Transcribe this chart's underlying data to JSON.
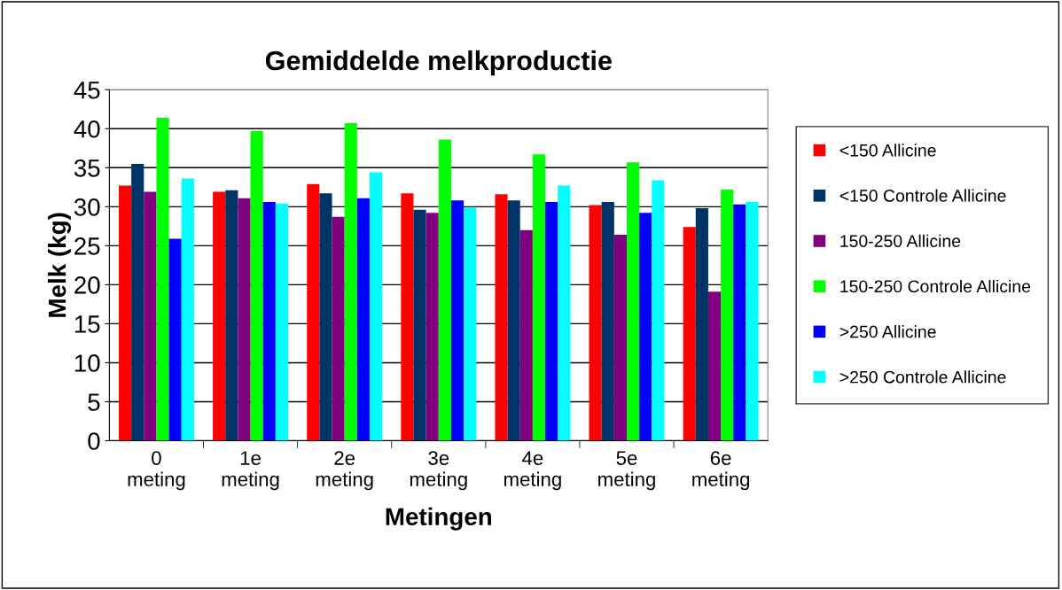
{
  "chart_data": {
    "type": "bar",
    "title": "Gemiddelde melkproductie",
    "xlabel": "Metingen",
    "ylabel": "Melk (kg)",
    "categories": [
      "0\nmeting",
      "1e\nmeting",
      "2e\nmeting",
      "3e\nmeting",
      "4e\nmeting",
      "5e\nmeting",
      "6e\nmeting"
    ],
    "series": [
      {
        "name": "<150 Allicine",
        "color": "#ff0000",
        "values": [
          32.7,
          31.9,
          32.9,
          31.7,
          31.6,
          30.2,
          27.4
        ]
      },
      {
        "name": "<150 Controle Allicine",
        "color": "#003366",
        "values": [
          35.5,
          32.1,
          31.7,
          29.6,
          30.8,
          30.6,
          29.8
        ]
      },
      {
        "name": "150-250 Allicine",
        "color": "#800080",
        "values": [
          31.9,
          31.1,
          28.7,
          29.2,
          27.0,
          26.4,
          19.1
        ]
      },
      {
        "name": "150-250 Controle Allicine",
        "color": "#00ff00",
        "values": [
          41.4,
          39.7,
          40.7,
          38.6,
          36.7,
          35.7,
          32.2
        ]
      },
      {
        "name": ">250 Allicine",
        "color": "#0000ff",
        "values": [
          25.9,
          30.6,
          31.1,
          30.8,
          30.6,
          29.2,
          30.3
        ]
      },
      {
        "name": ">250 Controle Allicine",
        "color": "#00ffff",
        "values": [
          33.6,
          30.4,
          34.4,
          29.9,
          32.7,
          33.4,
          30.6
        ]
      }
    ],
    "ylim": [
      0,
      45
    ],
    "yticks": [
      0,
      5,
      10,
      15,
      20,
      25,
      30,
      35,
      40,
      45
    ],
    "grid": "y",
    "legend": "right"
  }
}
